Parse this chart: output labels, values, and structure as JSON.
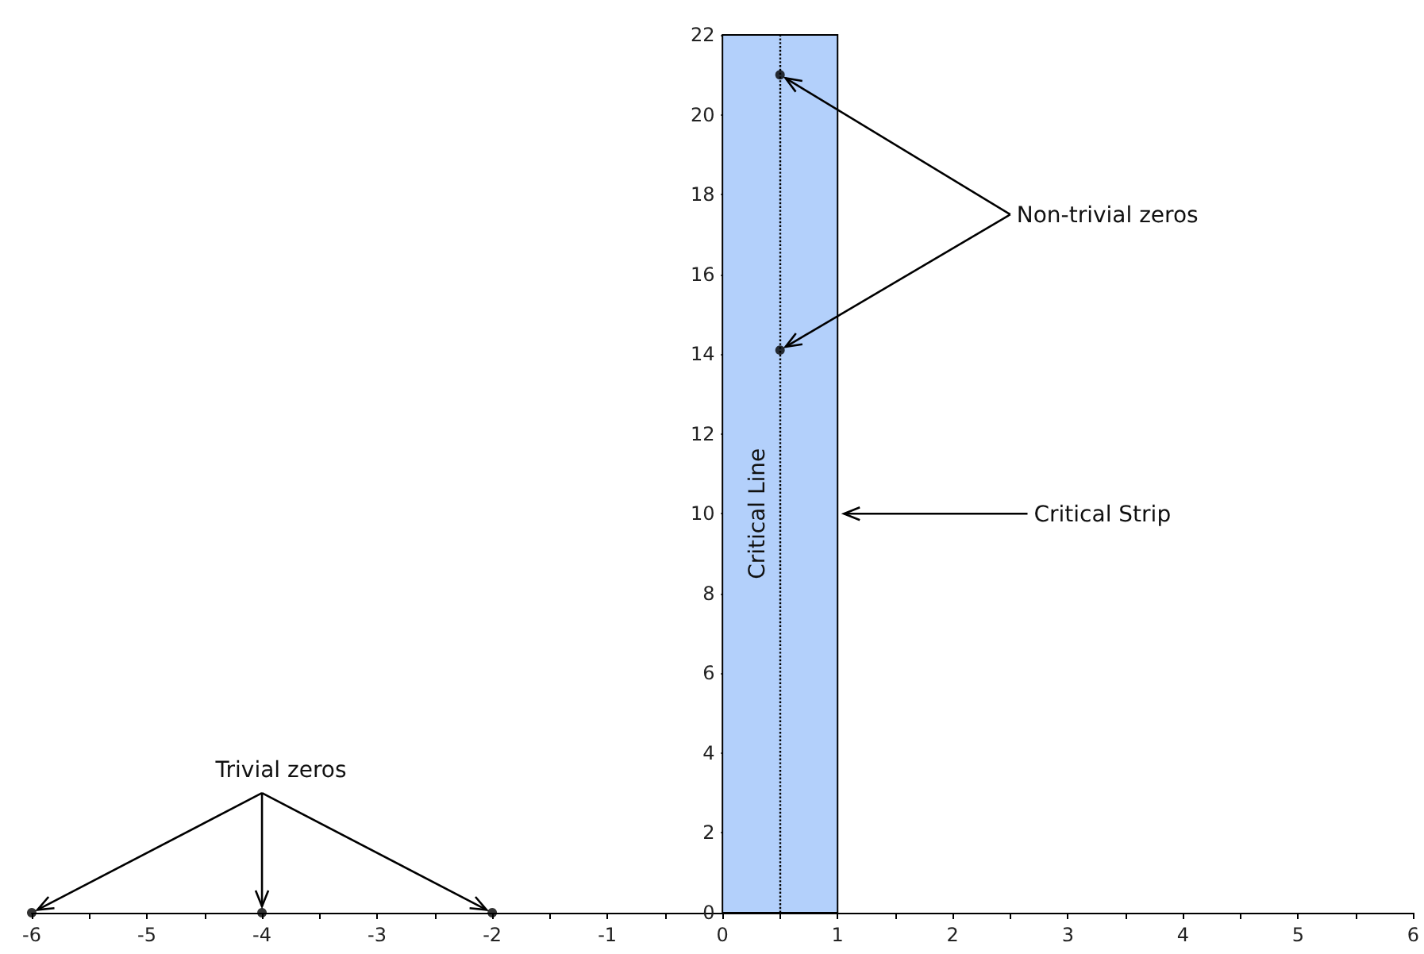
{
  "chart_data": {
    "type": "scatter",
    "series": [
      {
        "color": "#000000",
        "x": [
          -6,
          -4,
          -2,
          0.5,
          0.5
        ],
        "values": [
          0,
          0,
          0,
          14.1,
          21.0
        ]
      }
    ],
    "xlim": [
      -6,
      6
    ],
    "xticks": [
      -6,
      {
        "value": -5.5,
        "label": null
      },
      -5,
      {
        "value": -4.5,
        "label": null
      },
      -4,
      {
        "value": -3.5,
        "label": null
      },
      -3,
      {
        "value": -2.5,
        "label": null
      },
      -2,
      {
        "value": -1.5,
        "label": null
      },
      -1,
      {
        "value": -0.5,
        "label": null
      },
      0,
      {
        "value": 0.5,
        "label": null
      },
      1,
      {
        "value": 1.5,
        "label": null
      },
      2,
      {
        "value": 2.5,
        "label": null
      },
      3,
      {
        "value": 3.5,
        "label": null
      },
      4,
      {
        "value": 4.5,
        "label": null
      },
      5,
      {
        "value": 5.5,
        "label": null
      },
      6
    ],
    "ylim": [
      0,
      22
    ],
    "yticks": [
      0,
      2,
      4,
      6,
      8,
      10,
      12,
      14,
      16,
      18,
      20,
      22
    ],
    "grid": false,
    "marker": "circle",
    "bands": [
      {
        "axis": "x",
        "from": 0,
        "to": 1,
        "color": "#b3d0fb"
      }
    ],
    "ref_lines": [
      {
        "axis": "x",
        "value": 0.5,
        "label": "Critical Line",
        "line_style": "dotted",
        "color": "#000000"
      }
    ],
    "annotations": [
      {
        "text": "Trivial zeros",
        "x": -4,
        "y": 0
      },
      {
        "text": "Non-trivial zeros",
        "x": 0.5,
        "y": 14.1
      },
      {
        "text": "Critical Strip",
        "x": 1,
        "y": 10
      }
    ]
  }
}
